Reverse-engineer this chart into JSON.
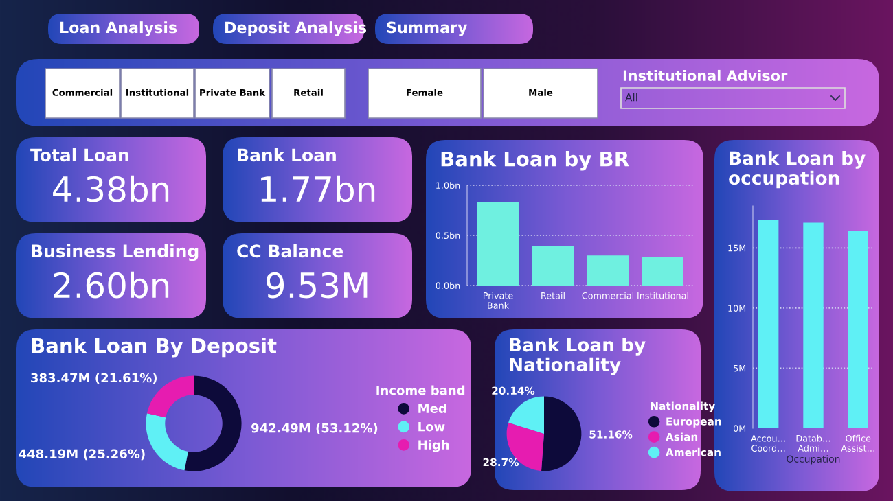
{
  "chart_data": [
    {
      "type": "other",
      "annotations": [
        "Loan Analysis",
        "Deposit Analysis",
        "Summary",
        "Commercial",
        "Institutional",
        "Private Bank",
        "Retail",
        "Female",
        "Male",
        "Institutional Advisor",
        "All"
      ]
    },
    {
      "type": "other",
      "title": "Total Loan",
      "annotations": [
        "4.38bn"
      ]
    },
    {
      "type": "other",
      "title": "Bank Loan",
      "annotations": [
        "1.77bn"
      ]
    },
    {
      "type": "other",
      "title": "Business Lending",
      "annotations": [
        "2.60bn"
      ]
    },
    {
      "type": "other",
      "title": "CC Balance",
      "annotations": [
        "9.53M"
      ]
    },
    {
      "type": "bar",
      "title": "Bank Loan by BR",
      "categories": [
        "Private Bank",
        "Retail",
        "Commercial",
        "Institutional"
      ],
      "values": [
        0.83,
        0.39,
        0.3,
        0.28
      ],
      "color": "#6ff0e0",
      "ylim": [
        0,
        1
      ],
      "yticks": [
        {
          "value": 0,
          "label": "0.0bn"
        },
        {
          "value": 0.5,
          "label": "0.5bn"
        },
        {
          "value": 1,
          "label": "1.0bn"
        }
      ],
      "grid": "y"
    },
    {
      "type": "bar",
      "title": "Bank Loan by occupation",
      "xlabel": "Occupation",
      "categories": [
        "Accou… Coord…",
        "Datab… Admi…",
        "Office Assist…"
      ],
      "values": [
        17.3,
        17.1,
        16.4
      ],
      "color": "#5ff0f5",
      "ylim": [
        0,
        18.5
      ],
      "yticks": [
        {
          "value": 0,
          "label": "0M"
        },
        {
          "value": 5,
          "label": "5M"
        },
        {
          "value": 10,
          "label": "10M"
        },
        {
          "value": 15,
          "label": "15M"
        }
      ],
      "grid": "y"
    },
    {
      "type": "donut",
      "title": "Bank Loan By Deposit",
      "categories": [
        "Med",
        "Low",
        "High"
      ],
      "values": [
        53.12,
        25.26,
        21.61
      ],
      "colors": [
        "#0d0a3a",
        "#5ff0f5",
        "#e61cb0"
      ],
      "value_labels": [
        "942.49M (53.12%)",
        "448.19M (25.26%)",
        "383.47M (21.61%)"
      ],
      "legend_title": "Income band",
      "legend": "right"
    },
    {
      "type": "pie",
      "title": "Bank Loan by Nationality",
      "categories": [
        "European",
        "Asian",
        "American"
      ],
      "values": [
        51.16,
        28.7,
        20.14
      ],
      "colors": [
        "#0d0a3a",
        "#e61cb0",
        "#5ff0f5"
      ],
      "value_labels": [
        "51.16%",
        "28.7%",
        "20.14%"
      ],
      "legend_title": "Nationality",
      "legend": "right"
    }
  ]
}
